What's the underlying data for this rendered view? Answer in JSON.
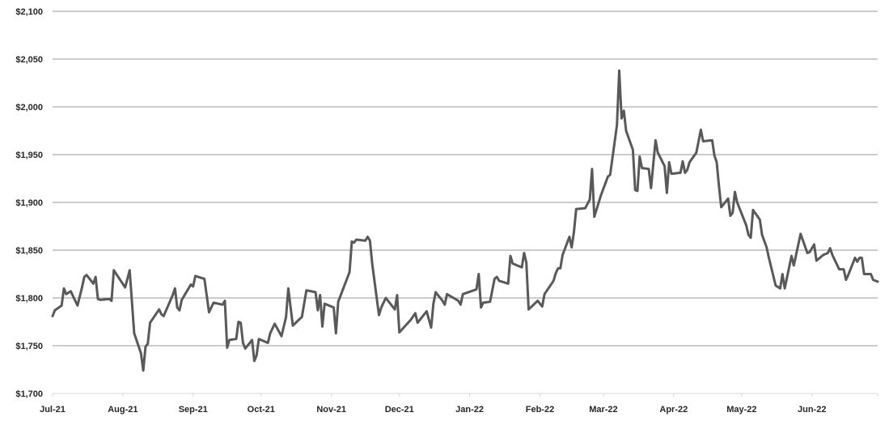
{
  "chart_data": {
    "type": "line",
    "title": "",
    "xlabel": "",
    "ylabel": "",
    "ylim": [
      1700,
      2100
    ],
    "xlim": [
      "2021-07-01",
      "2022-06-30"
    ],
    "grid": true,
    "legend": "none",
    "colors": {
      "line": "#595959",
      "grid": "#999999",
      "axis": "#d9d9d9"
    },
    "y_ticks": [
      {
        "value": 1700,
        "label": "$1,700"
      },
      {
        "value": 1750,
        "label": "$1,750"
      },
      {
        "value": 1800,
        "label": "$1,800"
      },
      {
        "value": 1850,
        "label": "$1,850"
      },
      {
        "value": 1900,
        "label": "$1,900"
      },
      {
        "value": 1950,
        "label": "$1,950"
      },
      {
        "value": 2000,
        "label": "$2,000"
      },
      {
        "value": 2050,
        "label": "$2,050"
      },
      {
        "value": 2100,
        "label": "$2,100"
      }
    ],
    "x_ticks": [
      {
        "date": "2021-07-01",
        "label": "Jul-21"
      },
      {
        "date": "2021-08-01",
        "label": "Aug-21"
      },
      {
        "date": "2021-09-01",
        "label": "Sep-21"
      },
      {
        "date": "2021-10-01",
        "label": "Oct-21"
      },
      {
        "date": "2021-11-01",
        "label": "Nov-21"
      },
      {
        "date": "2021-12-01",
        "label": "Dec-21"
      },
      {
        "date": "2022-01-01",
        "label": "Jan-22"
      },
      {
        "date": "2022-02-01",
        "label": "Feb-22"
      },
      {
        "date": "2022-03-01",
        "label": "Mar-22"
      },
      {
        "date": "2022-04-01",
        "label": "Apr-22"
      },
      {
        "date": "2022-05-01",
        "label": "May-22"
      },
      {
        "date": "2022-06-01",
        "label": "Jun-22"
      }
    ],
    "series": [
      {
        "points": [
          [
            "2021-07-01",
            1781
          ],
          [
            "2021-07-02",
            1787
          ],
          [
            "2021-07-05",
            1792
          ],
          [
            "2021-07-06",
            1810
          ],
          [
            "2021-07-07",
            1804
          ],
          [
            "2021-07-09",
            1807
          ],
          [
            "2021-07-12",
            1792
          ],
          [
            "2021-07-14",
            1811
          ],
          [
            "2021-07-15",
            1822
          ],
          [
            "2021-07-16",
            1824
          ],
          [
            "2021-07-19",
            1815
          ],
          [
            "2021-07-20",
            1822
          ],
          [
            "2021-07-21",
            1799
          ],
          [
            "2021-07-22",
            1798
          ],
          [
            "2021-07-26",
            1799
          ],
          [
            "2021-07-27",
            1797
          ],
          [
            "2021-07-28",
            1829
          ],
          [
            "2021-08-02",
            1811
          ],
          [
            "2021-08-04",
            1829
          ],
          [
            "2021-08-06",
            1763
          ],
          [
            "2021-08-09",
            1742
          ],
          [
            "2021-08-10",
            1724
          ],
          [
            "2021-08-11",
            1749
          ],
          [
            "2021-08-12",
            1752
          ],
          [
            "2021-08-13",
            1774
          ],
          [
            "2021-08-17",
            1788
          ],
          [
            "2021-08-18",
            1783
          ],
          [
            "2021-08-19",
            1781
          ],
          [
            "2021-08-23",
            1803
          ],
          [
            "2021-08-24",
            1810
          ],
          [
            "2021-08-25",
            1790
          ],
          [
            "2021-08-26",
            1787
          ],
          [
            "2021-08-27",
            1798
          ],
          [
            "2021-08-31",
            1814
          ],
          [
            "2021-09-01",
            1812
          ],
          [
            "2021-09-02",
            1823
          ],
          [
            "2021-09-06",
            1820
          ],
          [
            "2021-09-08",
            1785
          ],
          [
            "2021-09-10",
            1795
          ],
          [
            "2021-09-14",
            1793
          ],
          [
            "2021-09-15",
            1797
          ],
          [
            "2021-09-16",
            1748
          ],
          [
            "2021-09-17",
            1756
          ],
          [
            "2021-09-20",
            1757
          ],
          [
            "2021-09-21",
            1775
          ],
          [
            "2021-09-22",
            1774
          ],
          [
            "2021-09-23",
            1753
          ],
          [
            "2021-09-24",
            1747
          ],
          [
            "2021-09-27",
            1756
          ],
          [
            "2021-09-28",
            1734
          ],
          [
            "2021-09-29",
            1740
          ],
          [
            "2021-09-30",
            1757
          ],
          [
            "2021-10-04",
            1753
          ],
          [
            "2021-10-05",
            1763
          ],
          [
            "2021-10-07",
            1773
          ],
          [
            "2021-10-10",
            1760
          ],
          [
            "2021-10-12",
            1780
          ],
          [
            "2021-10-13",
            1810
          ],
          [
            "2021-10-15",
            1771
          ],
          [
            "2021-10-18",
            1778
          ],
          [
            "2021-10-19",
            1780
          ],
          [
            "2021-10-21",
            1808
          ],
          [
            "2021-10-25",
            1806
          ],
          [
            "2021-10-26",
            1787
          ],
          [
            "2021-10-27",
            1803
          ],
          [
            "2021-10-28",
            1770
          ],
          [
            "2021-10-29",
            1794
          ],
          [
            "2021-11-02",
            1790
          ],
          [
            "2021-11-03",
            1763
          ],
          [
            "2021-11-04",
            1796
          ],
          [
            "2021-11-09",
            1827
          ],
          [
            "2021-11-10",
            1859
          ],
          [
            "2021-11-11",
            1858
          ],
          [
            "2021-11-12",
            1861
          ],
          [
            "2021-11-16",
            1860
          ],
          [
            "2021-11-17",
            1864
          ],
          [
            "2021-11-18",
            1860
          ],
          [
            "2021-11-19",
            1836
          ],
          [
            "2021-11-22",
            1782
          ],
          [
            "2021-11-23",
            1790
          ],
          [
            "2021-11-25",
            1800
          ],
          [
            "2021-11-29",
            1788
          ],
          [
            "2021-11-30",
            1803
          ],
          [
            "2021-12-01",
            1764
          ],
          [
            "2021-12-06",
            1777
          ],
          [
            "2021-12-08",
            1784
          ],
          [
            "2021-12-09",
            1774
          ],
          [
            "2021-12-13",
            1786
          ],
          [
            "2021-12-15",
            1769
          ],
          [
            "2021-12-16",
            1794
          ],
          [
            "2021-12-17",
            1806
          ],
          [
            "2021-12-20",
            1797
          ],
          [
            "2021-12-21",
            1793
          ],
          [
            "2021-12-22",
            1804
          ],
          [
            "2021-12-27",
            1797
          ],
          [
            "2021-12-28",
            1793
          ],
          [
            "2021-12-29",
            1804
          ],
          [
            "2022-01-04",
            1809
          ],
          [
            "2022-01-05",
            1825
          ],
          [
            "2022-01-06",
            1790
          ],
          [
            "2022-01-07",
            1795
          ],
          [
            "2022-01-10",
            1796
          ],
          [
            "2022-01-12",
            1820
          ],
          [
            "2022-01-13",
            1822
          ],
          [
            "2022-01-14",
            1818
          ],
          [
            "2022-01-18",
            1815
          ],
          [
            "2022-01-19",
            1844
          ],
          [
            "2022-01-20",
            1836
          ],
          [
            "2022-01-24",
            1832
          ],
          [
            "2022-01-25",
            1847
          ],
          [
            "2022-01-26",
            1837
          ],
          [
            "2022-01-27",
            1788
          ],
          [
            "2022-01-31",
            1797
          ],
          [
            "2022-02-02",
            1791
          ],
          [
            "2022-02-03",
            1804
          ],
          [
            "2022-02-07",
            1818
          ],
          [
            "2022-02-08",
            1826
          ],
          [
            "2022-02-09",
            1831
          ],
          [
            "2022-02-10",
            1831
          ],
          [
            "2022-02-11",
            1845
          ],
          [
            "2022-02-14",
            1864
          ],
          [
            "2022-02-15",
            1853
          ],
          [
            "2022-02-16",
            1869
          ],
          [
            "2022-02-17",
            1893
          ],
          [
            "2022-02-21",
            1894
          ],
          [
            "2022-02-23",
            1903
          ],
          [
            "2022-02-24",
            1935
          ],
          [
            "2022-02-25",
            1885
          ],
          [
            "2022-02-28",
            1908
          ],
          [
            "2022-03-03",
            1927
          ],
          [
            "2022-03-04",
            1929
          ],
          [
            "2022-03-07",
            1981
          ],
          [
            "2022-03-08",
            2038
          ],
          [
            "2022-03-09",
            1988
          ],
          [
            "2022-03-10",
            1996
          ],
          [
            "2022-03-11",
            1975
          ],
          [
            "2022-03-14",
            1955
          ],
          [
            "2022-03-15",
            1913
          ],
          [
            "2022-03-16",
            1912
          ],
          [
            "2022-03-17",
            1948
          ],
          [
            "2022-03-18",
            1936
          ],
          [
            "2022-03-21",
            1935
          ],
          [
            "2022-03-22",
            1915
          ],
          [
            "2022-03-24",
            1965
          ],
          [
            "2022-03-25",
            1952
          ],
          [
            "2022-03-28",
            1938
          ],
          [
            "2022-03-29",
            1910
          ],
          [
            "2022-03-30",
            1942
          ],
          [
            "2022-03-31",
            1930
          ],
          [
            "2022-04-04",
            1931
          ],
          [
            "2022-04-05",
            1943
          ],
          [
            "2022-04-06",
            1931
          ],
          [
            "2022-04-07",
            1934
          ],
          [
            "2022-04-08",
            1942
          ],
          [
            "2022-04-11",
            1952
          ],
          [
            "2022-04-12",
            1964
          ],
          [
            "2022-04-13",
            1976
          ],
          [
            "2022-04-14",
            1964
          ],
          [
            "2022-04-18",
            1965
          ],
          [
            "2022-04-19",
            1949
          ],
          [
            "2022-04-20",
            1942
          ],
          [
            "2022-04-21",
            1917
          ],
          [
            "2022-04-22",
            1895
          ],
          [
            "2022-04-25",
            1904
          ],
          [
            "2022-04-26",
            1886
          ],
          [
            "2022-04-27",
            1889
          ],
          [
            "2022-04-28",
            1911
          ],
          [
            "2022-04-29",
            1900
          ],
          [
            "2022-05-03",
            1876
          ],
          [
            "2022-05-04",
            1866
          ],
          [
            "2022-05-05",
            1863
          ],
          [
            "2022-05-06",
            1892
          ],
          [
            "2022-05-09",
            1882
          ],
          [
            "2022-05-10",
            1866
          ],
          [
            "2022-05-12",
            1853
          ],
          [
            "2022-05-13",
            1842
          ],
          [
            "2022-05-16",
            1813
          ],
          [
            "2022-05-18",
            1810
          ],
          [
            "2022-05-19",
            1825
          ],
          [
            "2022-05-20",
            1810
          ],
          [
            "2022-05-23",
            1844
          ],
          [
            "2022-05-24",
            1834
          ],
          [
            "2022-05-26",
            1856
          ],
          [
            "2022-05-27",
            1867
          ],
          [
            "2022-05-30",
            1847
          ],
          [
            "2022-05-31",
            1848
          ],
          [
            "2022-06-01",
            1852
          ],
          [
            "2022-06-02",
            1856
          ],
          [
            "2022-06-03",
            1839
          ],
          [
            "2022-06-06",
            1845
          ],
          [
            "2022-06-07",
            1846
          ],
          [
            "2022-06-08",
            1847
          ],
          [
            "2022-06-09",
            1852
          ],
          [
            "2022-06-10",
            1845
          ],
          [
            "2022-06-13",
            1830
          ],
          [
            "2022-06-15",
            1830
          ],
          [
            "2022-06-16",
            1819
          ],
          [
            "2022-06-17",
            1824
          ],
          [
            "2022-06-20",
            1842
          ],
          [
            "2022-06-21",
            1838
          ],
          [
            "2022-06-22",
            1842
          ],
          [
            "2022-06-23",
            1842
          ],
          [
            "2022-06-24",
            1825
          ],
          [
            "2022-06-27",
            1825
          ],
          [
            "2022-06-28",
            1819
          ],
          [
            "2022-06-30",
            1817
          ]
        ]
      }
    ]
  }
}
